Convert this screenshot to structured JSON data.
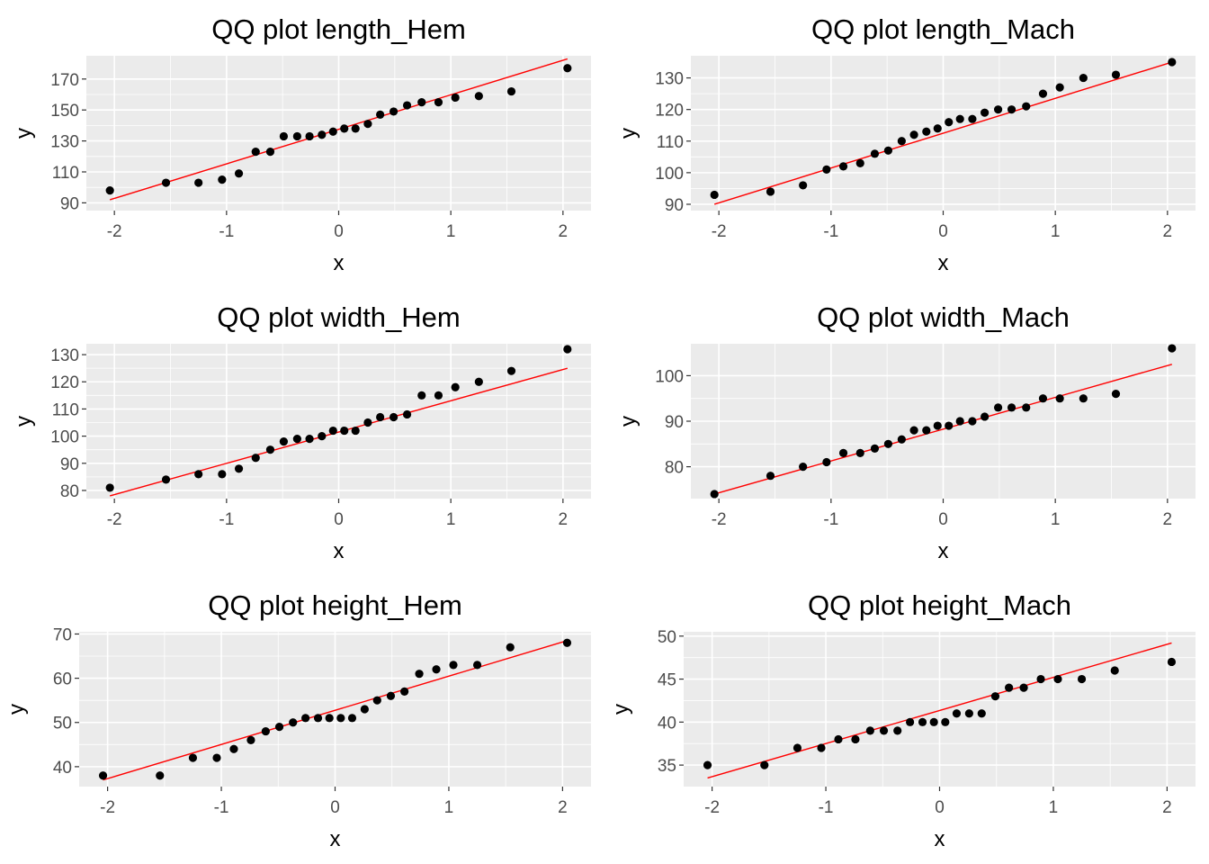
{
  "colors": {
    "panel_background": "#ebebeb",
    "grid": "#ffffff",
    "points": "#000000",
    "reference_line": "#ff0000",
    "tick_label": "#4d4d4d"
  },
  "chart_data": [
    {
      "type": "scatter",
      "title": "QQ plot length_Hem",
      "xlabel": "x",
      "ylabel": "y",
      "xlim": [
        -2.25,
        2.25
      ],
      "ylim": [
        85,
        185
      ],
      "xticks": [
        "-2",
        "-1",
        "0",
        "1",
        "2"
      ],
      "yticks": [
        "90",
        "110",
        "130",
        "150",
        "170"
      ],
      "grid": true,
      "x": [
        -2.04,
        -1.54,
        -1.25,
        -1.04,
        -0.89,
        -0.74,
        -0.61,
        -0.49,
        -0.37,
        -0.26,
        -0.15,
        -0.05,
        0.05,
        0.15,
        0.26,
        0.37,
        0.49,
        0.61,
        0.74,
        0.89,
        1.04,
        1.25,
        1.54,
        2.04
      ],
      "y": [
        98,
        103,
        103,
        105,
        109,
        123,
        123,
        133,
        133,
        133,
        134,
        136,
        138,
        138,
        141,
        147,
        149,
        153,
        155,
        155,
        158,
        159,
        162,
        177
      ],
      "reference_line": {
        "x": [
          -2.04,
          2.04
        ],
        "y": [
          92,
          183
        ]
      }
    },
    {
      "type": "scatter",
      "title": "QQ plot length_Mach",
      "xlabel": "x",
      "ylabel": "y",
      "xlim": [
        -2.25,
        2.25
      ],
      "ylim": [
        88,
        137
      ],
      "xticks": [
        "-2",
        "-1",
        "0",
        "1",
        "2"
      ],
      "yticks": [
        "90",
        "100",
        "110",
        "120",
        "130"
      ],
      "grid": true,
      "x": [
        -2.04,
        -1.54,
        -1.25,
        -1.04,
        -0.89,
        -0.74,
        -0.61,
        -0.49,
        -0.37,
        -0.26,
        -0.15,
        -0.05,
        0.05,
        0.15,
        0.26,
        0.37,
        0.49,
        0.61,
        0.74,
        0.89,
        1.04,
        1.25,
        1.54,
        2.04
      ],
      "y": [
        93,
        94,
        96,
        101,
        102,
        103,
        106,
        107,
        110,
        112,
        113,
        114,
        116,
        117,
        117,
        119,
        120,
        120,
        121,
        125,
        127,
        130,
        131,
        135
      ],
      "reference_line": {
        "x": [
          -2.04,
          2.04
        ],
        "y": [
          90,
          135
        ]
      }
    },
    {
      "type": "scatter",
      "title": "QQ plot width_Hem",
      "xlabel": "x",
      "ylabel": "y",
      "xlim": [
        -2.25,
        2.25
      ],
      "ylim": [
        77,
        134
      ],
      "xticks": [
        "-2",
        "-1",
        "0",
        "1",
        "2"
      ],
      "yticks": [
        "80",
        "90",
        "100",
        "110",
        "120",
        "130"
      ],
      "grid": true,
      "x": [
        -2.04,
        -1.54,
        -1.25,
        -1.04,
        -0.89,
        -0.74,
        -0.61,
        -0.49,
        -0.37,
        -0.26,
        -0.15,
        -0.05,
        0.05,
        0.15,
        0.26,
        0.37,
        0.49,
        0.61,
        0.74,
        0.89,
        1.04,
        1.25,
        1.54,
        2.04
      ],
      "y": [
        81,
        84,
        86,
        86,
        88,
        92,
        95,
        98,
        99,
        99,
        100,
        102,
        102,
        102,
        105,
        107,
        107,
        108,
        115,
        115,
        118,
        120,
        124,
        132
      ],
      "reference_line": {
        "x": [
          -2.04,
          2.04
        ],
        "y": [
          78,
          125
        ]
      }
    },
    {
      "type": "scatter",
      "title": "QQ plot width_Mach",
      "xlabel": "x",
      "ylabel": "y",
      "xlim": [
        -2.25,
        2.25
      ],
      "ylim": [
        73,
        107
      ],
      "xticks": [
        "-2",
        "-1",
        "0",
        "1",
        "2"
      ],
      "yticks": [
        "80",
        "90",
        "100"
      ],
      "grid": true,
      "x": [
        -2.04,
        -1.54,
        -1.25,
        -1.04,
        -0.89,
        -0.74,
        -0.61,
        -0.49,
        -0.37,
        -0.26,
        -0.15,
        -0.05,
        0.05,
        0.15,
        0.26,
        0.37,
        0.49,
        0.61,
        0.74,
        0.89,
        1.04,
        1.25,
        1.54,
        2.04
      ],
      "y": [
        74,
        78,
        80,
        81,
        83,
        83,
        84,
        85,
        86,
        88,
        88,
        89,
        89,
        90,
        90,
        91,
        93,
        93,
        93,
        95,
        95,
        95,
        96,
        106
      ],
      "reference_line": {
        "x": [
          -2.04,
          2.04
        ],
        "y": [
          74,
          102.5
        ]
      }
    },
    {
      "type": "scatter",
      "title": "QQ plot height_Hem",
      "xlabel": "x",
      "ylabel": "y",
      "xlim": [
        -2.25,
        2.25
      ],
      "ylim": [
        35.5,
        70.5
      ],
      "xticks": [
        "-2",
        "-1",
        "0",
        "1",
        "2"
      ],
      "yticks": [
        "40",
        "50",
        "60",
        "70"
      ],
      "grid": true,
      "x": [
        -2.04,
        -1.54,
        -1.25,
        -1.04,
        -0.89,
        -0.74,
        -0.61,
        -0.49,
        -0.37,
        -0.26,
        -0.15,
        -0.05,
        0.05,
        0.15,
        0.26,
        0.37,
        0.49,
        0.61,
        0.74,
        0.89,
        1.04,
        1.25,
        1.54,
        2.04
      ],
      "y": [
        38,
        38,
        42,
        42,
        44,
        46,
        48,
        49,
        50,
        51,
        51,
        51,
        51,
        51,
        53,
        55,
        56,
        57,
        61,
        62,
        63,
        63,
        67,
        68
      ],
      "reference_line": {
        "x": [
          -2.04,
          2.04
        ],
        "y": [
          37,
          68.5
        ]
      }
    },
    {
      "type": "scatter",
      "title": "QQ plot height_Mach",
      "xlabel": "x",
      "ylabel": "y",
      "xlim": [
        -2.25,
        2.25
      ],
      "ylim": [
        32.5,
        50.5
      ],
      "xticks": [
        "-2",
        "-1",
        "0",
        "1",
        "2"
      ],
      "yticks": [
        "35",
        "40",
        "45",
        "50"
      ],
      "grid": true,
      "x": [
        -2.04,
        -1.54,
        -1.25,
        -1.04,
        -0.89,
        -0.74,
        -0.61,
        -0.49,
        -0.37,
        -0.26,
        -0.15,
        -0.05,
        0.05,
        0.15,
        0.26,
        0.37,
        0.49,
        0.61,
        0.74,
        0.89,
        1.04,
        1.25,
        1.54,
        2.04
      ],
      "y": [
        35,
        35,
        37,
        37,
        38,
        38,
        39,
        39,
        39,
        40,
        40,
        40,
        40,
        41,
        41,
        41,
        43,
        44,
        44,
        45,
        45,
        45,
        46,
        47
      ],
      "reference_line": {
        "x": [
          -2.04,
          2.04
        ],
        "y": [
          33.5,
          49.2
        ]
      }
    }
  ]
}
